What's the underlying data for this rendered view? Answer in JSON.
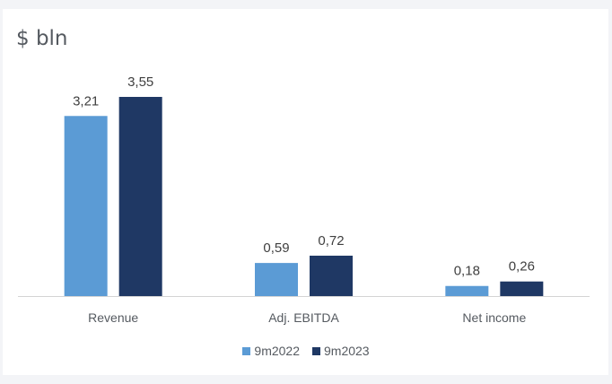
{
  "chart_data": {
    "type": "bar",
    "title": "$ bln",
    "categories": [
      "Revenue",
      "Adj. EBITDA",
      "Net income"
    ],
    "series": [
      {
        "name": "9m2022",
        "values": [
          3.21,
          0.59,
          0.18
        ],
        "labels": [
          "3,21",
          "0,59",
          "0,18"
        ],
        "color": "#5b9bd5"
      },
      {
        "name": "9m2023",
        "values": [
          3.55,
          0.72,
          0.26
        ],
        "labels": [
          "3,55",
          "0,72",
          "0,26"
        ],
        "color": "#1f3864"
      }
    ],
    "ylim": [
      0,
      3.55
    ],
    "grid": false,
    "legend_position": "bottom"
  }
}
